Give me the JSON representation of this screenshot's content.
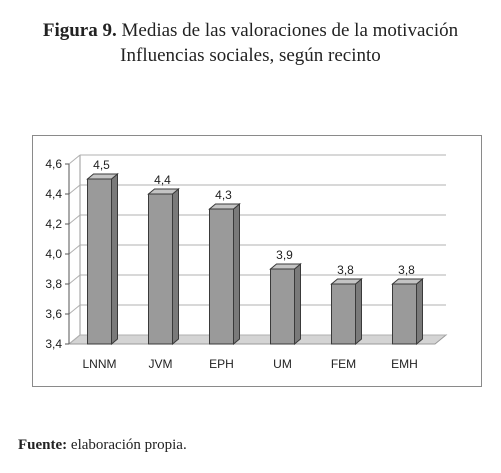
{
  "title": {
    "label": "Figura 9.",
    "line1": "Medias de las valoraciones de la motivación",
    "line2": "Influencias sociales, según recinto"
  },
  "source": {
    "label": "Fuente:",
    "text": "elaboración propia."
  },
  "colors": {
    "bar_front": "#9a9a9a",
    "bar_side": "#7a7a7a",
    "bar_top": "#c4c4c4",
    "grid": "#b0b0b0",
    "floor": "#d4d4d4"
  },
  "chart_data": {
    "type": "bar",
    "style": "3d-column",
    "categories": [
      "LNNM",
      "JVM",
      "EPH",
      "UM",
      "FEM",
      "EMH"
    ],
    "values": [
      4.5,
      4.4,
      4.3,
      3.9,
      3.8,
      3.8
    ],
    "data_labels": [
      "4,5",
      "4,4",
      "4,3",
      "3,9",
      "3,8",
      "3,8"
    ],
    "yticks": [
      "3,4",
      "3,6",
      "3,8",
      "4,0",
      "4,2",
      "4,4",
      "4,6"
    ],
    "ytick_values": [
      3.4,
      3.6,
      3.8,
      4.0,
      4.2,
      4.4,
      4.6
    ],
    "ylim": [
      3.4,
      4.6
    ],
    "grid": true,
    "legend": "none",
    "xlabel": "",
    "ylabel": ""
  }
}
